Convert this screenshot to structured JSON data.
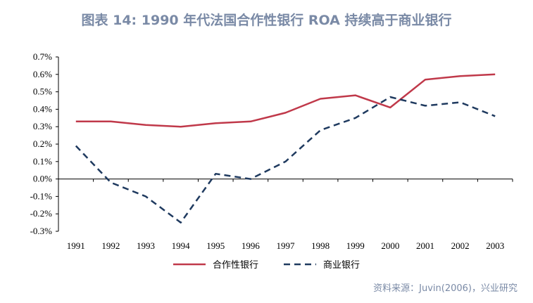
{
  "title": "图表 14: 1990 年代法国合作性银行 ROA 持续高于商业银行",
  "source": "资料来源：Juvin(2006)，兴业研究",
  "chart_data": {
    "type": "line",
    "x": [
      "1991",
      "1992",
      "1993",
      "1994",
      "1995",
      "1996",
      "1997",
      "1998",
      "1999",
      "2000",
      "2001",
      "2002",
      "2003"
    ],
    "y_ticks": [
      "0.7%",
      "0.6%",
      "0.5%",
      "0.4%",
      "0.3%",
      "0.2%",
      "0.1%",
      "0.0%",
      "-0.1%",
      "-0.2%",
      "-0.3%"
    ],
    "ylim": [
      -0.3,
      0.7
    ],
    "grid": false,
    "legend_position": "bottom",
    "series": [
      {
        "name": "合作性银行",
        "color": "#c0394a",
        "style": "solid",
        "values": [
          0.33,
          0.33,
          0.31,
          0.3,
          0.32,
          0.33,
          0.38,
          0.46,
          0.48,
          0.41,
          0.57,
          0.59,
          0.6
        ]
      },
      {
        "name": "商业银行",
        "color": "#1f3a5f",
        "style": "dashed",
        "values": [
          0.19,
          -0.02,
          -0.1,
          -0.25,
          0.03,
          0.0,
          0.1,
          0.28,
          0.35,
          0.47,
          0.42,
          0.44,
          0.36
        ]
      }
    ]
  }
}
